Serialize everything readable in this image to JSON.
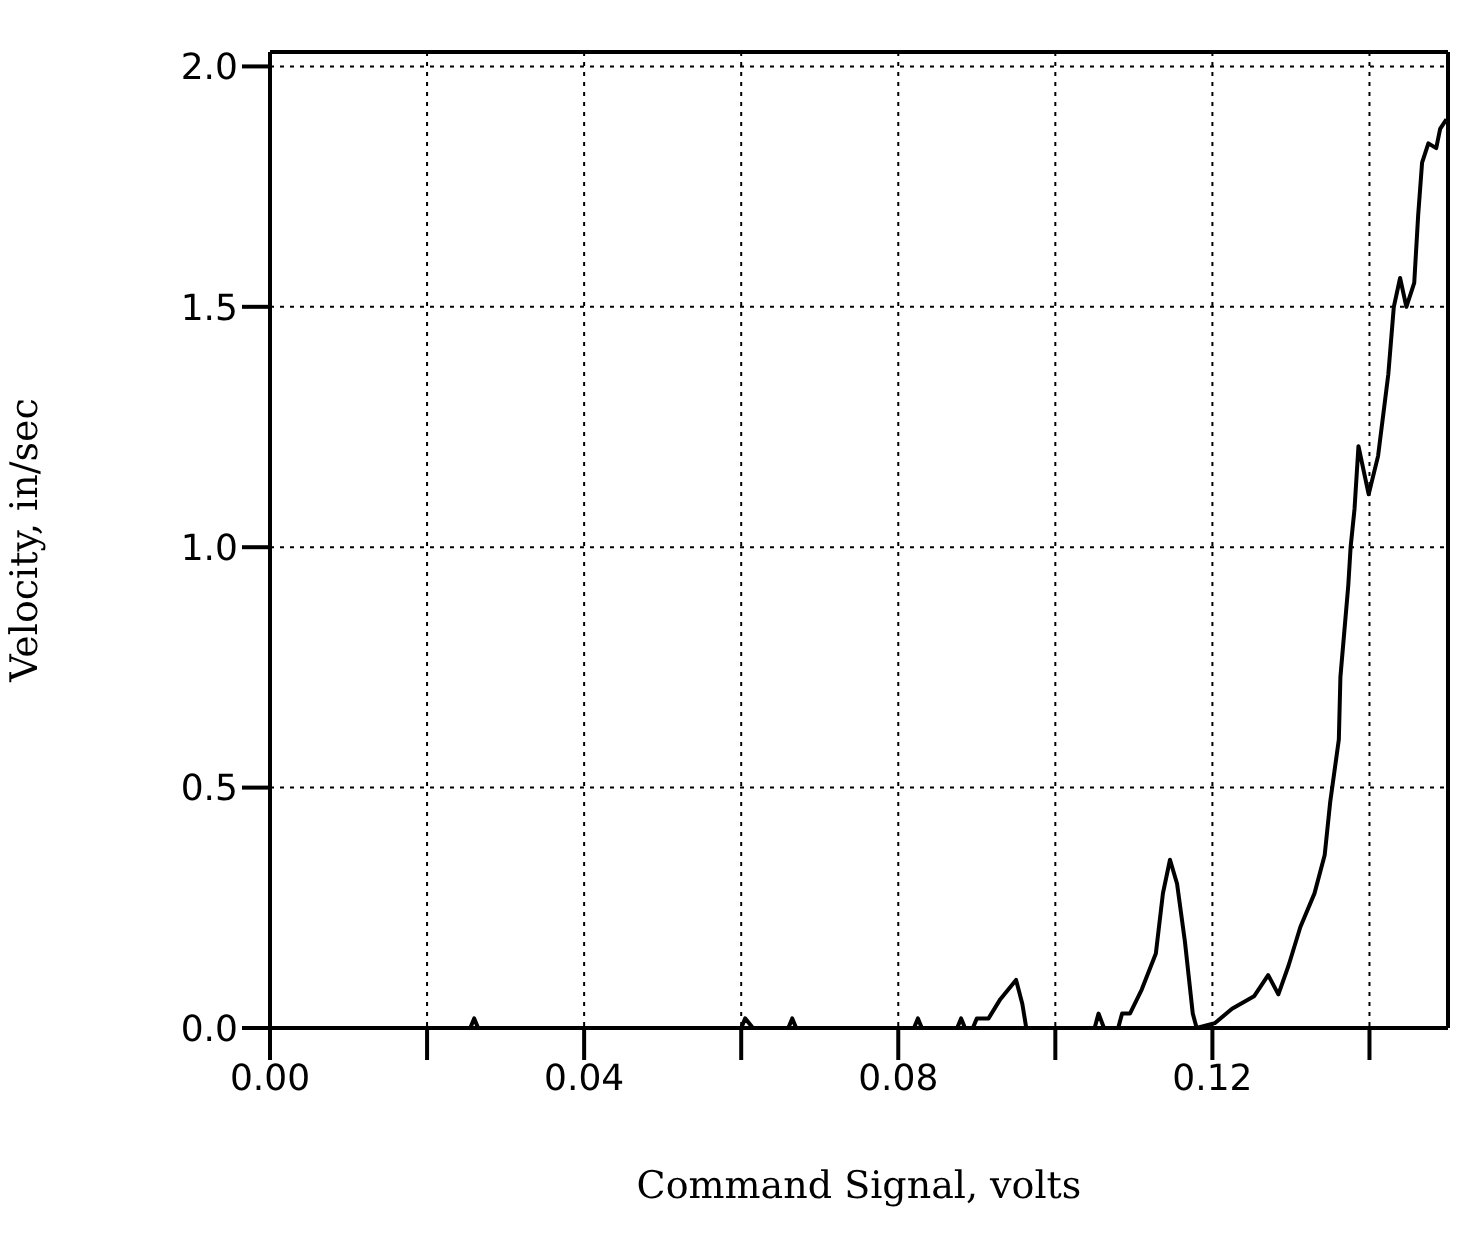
{
  "chart_data": {
    "type": "line",
    "xlabel": "Command Signal, volts",
    "ylabel": "Velocity, in/sec",
    "xlim": [
      0,
      0.15
    ],
    "ylim": [
      0,
      2.03
    ],
    "xticks": [
      {
        "value": 0,
        "label": "0.00"
      },
      {
        "value": 0.02,
        "label": null
      },
      {
        "value": 0.04,
        "label": "0.04"
      },
      {
        "value": 0.06,
        "label": null
      },
      {
        "value": 0.08,
        "label": "0.08"
      },
      {
        "value": 0.1,
        "label": null
      },
      {
        "value": 0.12,
        "label": "0.12"
      },
      {
        "value": 0.14,
        "label": null
      }
    ],
    "yticks": [
      {
        "value": 0,
        "label": "0.0"
      },
      0.5,
      {
        "value": 1,
        "label": "1.0"
      },
      1.5,
      {
        "value": 2,
        "label": "2.0"
      }
    ],
    "grid": true,
    "marker": "none",
    "line_style": "solid",
    "series": [
      {
        "color": "#000000",
        "x": [
          0,
          0.0255,
          0.026,
          0.0265,
          0.06,
          0.0605,
          0.0615,
          0.066,
          0.0665,
          0.067,
          0.082,
          0.0825,
          0.083,
          0.0875,
          0.088,
          0.0885,
          0.0895,
          0.09,
          0.0915,
          0.093,
          0.095,
          0.0958,
          0.0963,
          0.105,
          0.1055,
          0.1062,
          0.108,
          0.1085,
          0.1095,
          0.111,
          0.1128,
          0.1137,
          0.1146,
          0.1155,
          0.1165,
          0.1175,
          0.118,
          0.1203,
          0.1225,
          0.1253,
          0.1271,
          0.1284,
          0.1297,
          0.1312,
          0.133,
          0.1343,
          0.135,
          0.1361,
          0.1363,
          0.1373,
          0.1376,
          0.1381,
          0.1386,
          0.1399,
          0.1411,
          0.1424,
          0.1431,
          0.1439,
          0.1447,
          0.1457,
          0.1462,
          0.1467,
          0.1475,
          0.1485,
          0.149,
          0.1498
        ],
        "values": [
          0,
          0,
          0.02,
          0,
          0,
          0.02,
          0,
          0,
          0.02,
          0,
          0,
          0.02,
          0,
          0,
          0.02,
          0,
          0,
          0.02,
          0.02,
          0.06,
          0.1,
          0.05,
          0,
          0,
          0.03,
          0,
          0,
          0.03,
          0.03,
          0.08,
          0.155,
          0.28,
          0.35,
          0.3,
          0.18,
          0.03,
          0,
          0.01,
          0.04,
          0.066,
          0.11,
          0.07,
          0.13,
          0.21,
          0.28,
          0.36,
          0.47,
          0.6,
          0.73,
          0.92,
          1,
          1.08,
          1.21,
          1.11,
          1.19,
          1.36,
          1.5,
          1.56,
          1.5,
          1.55,
          1.69,
          1.8,
          1.84,
          1.83,
          1.87,
          1.89
        ]
      }
    ]
  }
}
